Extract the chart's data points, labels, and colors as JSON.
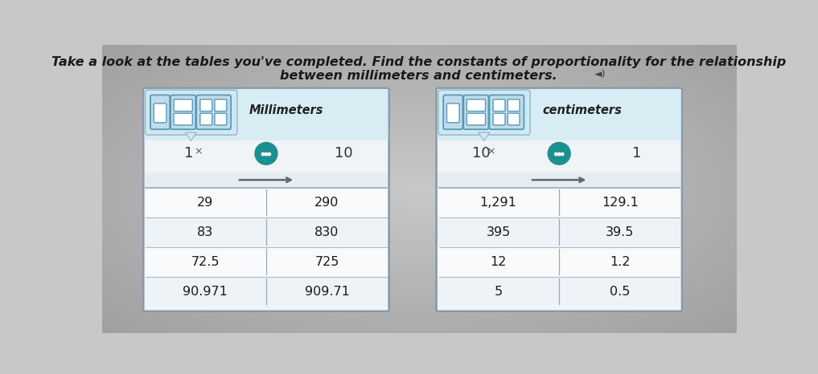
{
  "title_line1": "Take a look at the tables you've completed. Find the constants of proportionality for the relationship",
  "title_line2": "between millimeters and centimeters.",
  "bg_color": "#c8c8c8",
  "teal_color": "#1a9090",
  "left_table": {
    "header_label": "Millimeters",
    "multiplier_left": "1",
    "multiplier_right": "10",
    "rows": [
      [
        "29",
        "290"
      ],
      [
        "83",
        "830"
      ],
      [
        "72.5",
        "725"
      ],
      [
        "90.971",
        "909.71"
      ]
    ]
  },
  "right_table": {
    "header_label": "centimeters",
    "multiplier_left": "10",
    "multiplier_right": "1",
    "rows": [
      [
        "1,291",
        "129.1"
      ],
      [
        "395",
        "39.5"
      ],
      [
        "12",
        "1.2"
      ],
      [
        "5",
        "0.5"
      ]
    ]
  }
}
